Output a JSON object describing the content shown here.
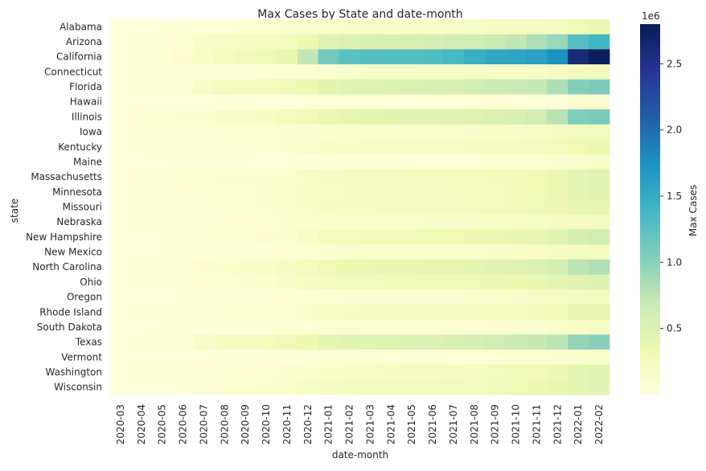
{
  "chart_data": {
    "type": "heatmap",
    "title": "Max Cases by State and date-month",
    "xlabel": "date-month",
    "ylabel": "state",
    "colorbar_label": "Max Cases",
    "colorbar_exponent": "1e6",
    "colorbar_ticks": [
      "0.5",
      "1.0",
      "1.5",
      "2.0",
      "2.5"
    ],
    "colorbar_tick_values": [
      0.5,
      1.0,
      1.5,
      2.0,
      2.5
    ],
    "colormap": "YlGnBu",
    "color_range": [
      0,
      2.8
    ],
    "value_unit": "millions",
    "months": [
      "2020-03",
      "2020-04",
      "2020-05",
      "2020-06",
      "2020-07",
      "2020-08",
      "2020-09",
      "2020-10",
      "2020-11",
      "2020-12",
      "2021-01",
      "2021-02",
      "2021-03",
      "2021-04",
      "2021-05",
      "2021-06",
      "2021-07",
      "2021-08",
      "2021-09",
      "2021-10",
      "2021-11",
      "2021-12",
      "2022-01",
      "2022-02"
    ],
    "states": [
      "Alabama",
      "Arizona",
      "California",
      "Connecticut",
      "Florida",
      "Hawaii",
      "Illinois",
      "Iowa",
      "Kentucky",
      "Maine",
      "Massachusetts",
      "Minnesota",
      "Missouri",
      "Nebraska",
      "New Hampshire",
      "New Mexico",
      "North Carolina",
      "Ohio",
      "Oregon",
      "Rhode Island",
      "South Dakota",
      "Texas",
      "Vermont",
      "Washington",
      "Wisconsin"
    ],
    "rows": [
      {
        "state": "Alabama",
        "values": [
          0.0,
          0.01,
          0.02,
          0.03,
          0.04,
          0.05,
          0.06,
          0.07,
          0.08,
          0.1,
          0.12,
          0.13,
          0.14,
          0.14,
          0.15,
          0.15,
          0.16,
          0.17,
          0.18,
          0.19,
          0.2,
          0.22,
          0.3,
          0.34
        ]
      },
      {
        "state": "Arizona",
        "values": [
          0.0,
          0.01,
          0.02,
          0.06,
          0.14,
          0.17,
          0.19,
          0.21,
          0.25,
          0.35,
          0.48,
          0.52,
          0.54,
          0.55,
          0.56,
          0.58,
          0.6,
          0.63,
          0.67,
          0.72,
          0.82,
          0.93,
          1.28,
          1.4
        ]
      },
      {
        "state": "California",
        "values": [
          0.0,
          0.02,
          0.04,
          0.08,
          0.17,
          0.24,
          0.28,
          0.31,
          0.38,
          0.72,
          1.12,
          1.25,
          1.28,
          1.29,
          1.3,
          1.31,
          1.36,
          1.47,
          1.55,
          1.58,
          1.62,
          1.75,
          2.62,
          2.79
        ]
      },
      {
        "state": "Connecticut",
        "values": [
          0.0,
          0.01,
          0.02,
          0.02,
          0.02,
          0.03,
          0.03,
          0.04,
          0.05,
          0.07,
          0.09,
          0.1,
          0.11,
          0.12,
          0.12,
          0.12,
          0.12,
          0.13,
          0.14,
          0.14,
          0.15,
          0.18,
          0.22,
          0.23
        ]
      },
      {
        "state": "Florida",
        "values": [
          0.0,
          0.01,
          0.02,
          0.05,
          0.15,
          0.21,
          0.24,
          0.26,
          0.29,
          0.35,
          0.43,
          0.46,
          0.48,
          0.5,
          0.52,
          0.53,
          0.55,
          0.62,
          0.66,
          0.68,
          0.7,
          0.82,
          1.02,
          1.08
        ]
      },
      {
        "state": "Hawaii",
        "values": [
          0.0,
          0.0,
          0.0,
          0.0,
          0.0,
          0.01,
          0.01,
          0.01,
          0.01,
          0.01,
          0.01,
          0.01,
          0.01,
          0.01,
          0.01,
          0.02,
          0.02,
          0.03,
          0.03,
          0.03,
          0.04,
          0.05,
          0.08,
          0.09
        ]
      },
      {
        "state": "Illinois",
        "values": [
          0.0,
          0.04,
          0.07,
          0.09,
          0.1,
          0.13,
          0.15,
          0.18,
          0.25,
          0.3,
          0.36,
          0.4,
          0.42,
          0.43,
          0.44,
          0.45,
          0.46,
          0.48,
          0.52,
          0.55,
          0.62,
          0.78,
          1.05,
          1.08
        ]
      },
      {
        "state": "Iowa",
        "values": [
          0.0,
          0.01,
          0.02,
          0.03,
          0.04,
          0.05,
          0.06,
          0.07,
          0.08,
          0.09,
          0.1,
          0.11,
          0.11,
          0.11,
          0.11,
          0.12,
          0.12,
          0.13,
          0.14,
          0.15,
          0.17,
          0.19,
          0.24,
          0.26
        ]
      },
      {
        "state": "Kentucky",
        "values": [
          0.0,
          0.01,
          0.01,
          0.02,
          0.03,
          0.04,
          0.05,
          0.06,
          0.08,
          0.12,
          0.14,
          0.15,
          0.16,
          0.16,
          0.16,
          0.17,
          0.17,
          0.18,
          0.2,
          0.22,
          0.24,
          0.26,
          0.32,
          0.36
        ]
      },
      {
        "state": "Maine",
        "values": [
          0.0,
          0.0,
          0.0,
          0.01,
          0.01,
          0.01,
          0.01,
          0.01,
          0.01,
          0.02,
          0.03,
          0.04,
          0.04,
          0.04,
          0.04,
          0.04,
          0.05,
          0.05,
          0.06,
          0.06,
          0.07,
          0.09,
          0.12,
          0.14
        ]
      },
      {
        "state": "Massachusetts",
        "values": [
          0.0,
          0.03,
          0.05,
          0.06,
          0.07,
          0.08,
          0.08,
          0.09,
          0.1,
          0.15,
          0.18,
          0.2,
          0.22,
          0.23,
          0.24,
          0.24,
          0.25,
          0.26,
          0.28,
          0.3,
          0.32,
          0.36,
          0.42,
          0.44
        ]
      },
      {
        "state": "Minnesota",
        "values": [
          0.0,
          0.01,
          0.02,
          0.03,
          0.05,
          0.06,
          0.07,
          0.08,
          0.12,
          0.15,
          0.17,
          0.18,
          0.19,
          0.2,
          0.21,
          0.21,
          0.22,
          0.23,
          0.25,
          0.28,
          0.32,
          0.36,
          0.42,
          0.44
        ]
      },
      {
        "state": "Missouri",
        "values": [
          0.0,
          0.01,
          0.01,
          0.02,
          0.03,
          0.05,
          0.07,
          0.09,
          0.12,
          0.15,
          0.18,
          0.19,
          0.2,
          0.21,
          0.22,
          0.23,
          0.24,
          0.25,
          0.27,
          0.29,
          0.31,
          0.34,
          0.38,
          0.4
        ]
      },
      {
        "state": "Nebraska",
        "values": [
          0.0,
          0.01,
          0.01,
          0.02,
          0.03,
          0.04,
          0.05,
          0.06,
          0.08,
          0.1,
          0.11,
          0.12,
          0.12,
          0.12,
          0.12,
          0.13,
          0.13,
          0.14,
          0.15,
          0.16,
          0.17,
          0.18,
          0.2,
          0.22
        ]
      },
      {
        "state": "New Hampshire",
        "values": [
          0.0,
          0.0,
          0.02,
          0.03,
          0.04,
          0.06,
          0.07,
          0.08,
          0.1,
          0.17,
          0.24,
          0.27,
          0.28,
          0.29,
          0.3,
          0.31,
          0.32,
          0.33,
          0.36,
          0.38,
          0.4,
          0.45,
          0.58,
          0.62
        ]
      },
      {
        "state": "New Mexico",
        "values": [
          0.0,
          0.0,
          0.01,
          0.01,
          0.02,
          0.02,
          0.03,
          0.03,
          0.05,
          0.07,
          0.09,
          0.1,
          0.1,
          0.1,
          0.11,
          0.11,
          0.11,
          0.12,
          0.13,
          0.14,
          0.16,
          0.18,
          0.22,
          0.24
        ]
      },
      {
        "state": "North Carolina",
        "values": [
          0.0,
          0.01,
          0.02,
          0.03,
          0.08,
          0.11,
          0.13,
          0.15,
          0.18,
          0.25,
          0.32,
          0.35,
          0.36,
          0.37,
          0.38,
          0.39,
          0.4,
          0.42,
          0.45,
          0.48,
          0.52,
          0.58,
          0.76,
          0.82
        ]
      },
      {
        "state": "Ohio",
        "values": [
          0.0,
          0.01,
          0.02,
          0.03,
          0.05,
          0.07,
          0.09,
          0.1,
          0.13,
          0.2,
          0.24,
          0.26,
          0.27,
          0.28,
          0.29,
          0.29,
          0.3,
          0.31,
          0.33,
          0.35,
          0.38,
          0.42,
          0.48,
          0.5
        ]
      },
      {
        "state": "Oregon",
        "values": [
          0.0,
          0.0,
          0.0,
          0.01,
          0.02,
          0.02,
          0.02,
          0.03,
          0.04,
          0.06,
          0.07,
          0.08,
          0.08,
          0.08,
          0.08,
          0.09,
          0.09,
          0.11,
          0.12,
          0.13,
          0.14,
          0.16,
          0.22,
          0.24
        ]
      },
      {
        "state": "Rhode Island",
        "values": [
          0.0,
          0.02,
          0.03,
          0.03,
          0.04,
          0.05,
          0.06,
          0.07,
          0.09,
          0.13,
          0.16,
          0.18,
          0.19,
          0.2,
          0.21,
          0.21,
          0.22,
          0.23,
          0.25,
          0.27,
          0.29,
          0.32,
          0.38,
          0.4
        ]
      },
      {
        "state": "South Dakota",
        "values": [
          0.0,
          0.0,
          0.01,
          0.01,
          0.01,
          0.01,
          0.02,
          0.03,
          0.04,
          0.05,
          0.06,
          0.06,
          0.06,
          0.06,
          0.06,
          0.07,
          0.07,
          0.07,
          0.08,
          0.09,
          0.1,
          0.11,
          0.14,
          0.16
        ]
      },
      {
        "state": "Texas",
        "values": [
          0.0,
          0.01,
          0.02,
          0.05,
          0.13,
          0.18,
          0.21,
          0.24,
          0.28,
          0.35,
          0.42,
          0.45,
          0.47,
          0.48,
          0.5,
          0.51,
          0.53,
          0.58,
          0.63,
          0.67,
          0.7,
          0.76,
          0.95,
          1.0
        ]
      },
      {
        "state": "Vermont",
        "values": [
          0.0,
          0.0,
          0.0,
          0.0,
          0.0,
          0.01,
          0.01,
          0.01,
          0.01,
          0.02,
          0.03,
          0.03,
          0.03,
          0.03,
          0.04,
          0.04,
          0.04,
          0.05,
          0.05,
          0.06,
          0.07,
          0.08,
          0.11,
          0.12
        ]
      },
      {
        "state": "Washington",
        "values": [
          0.0,
          0.01,
          0.01,
          0.02,
          0.03,
          0.04,
          0.05,
          0.06,
          0.08,
          0.12,
          0.14,
          0.16,
          0.17,
          0.18,
          0.19,
          0.2,
          0.21,
          0.23,
          0.26,
          0.28,
          0.3,
          0.34,
          0.42,
          0.44
        ]
      },
      {
        "state": "Wisconsin",
        "values": [
          0.0,
          0.01,
          0.01,
          0.02,
          0.04,
          0.06,
          0.07,
          0.09,
          0.12,
          0.17,
          0.2,
          0.22,
          0.23,
          0.24,
          0.25,
          0.25,
          0.26,
          0.27,
          0.29,
          0.31,
          0.34,
          0.37,
          0.42,
          0.44
        ]
      }
    ]
  }
}
